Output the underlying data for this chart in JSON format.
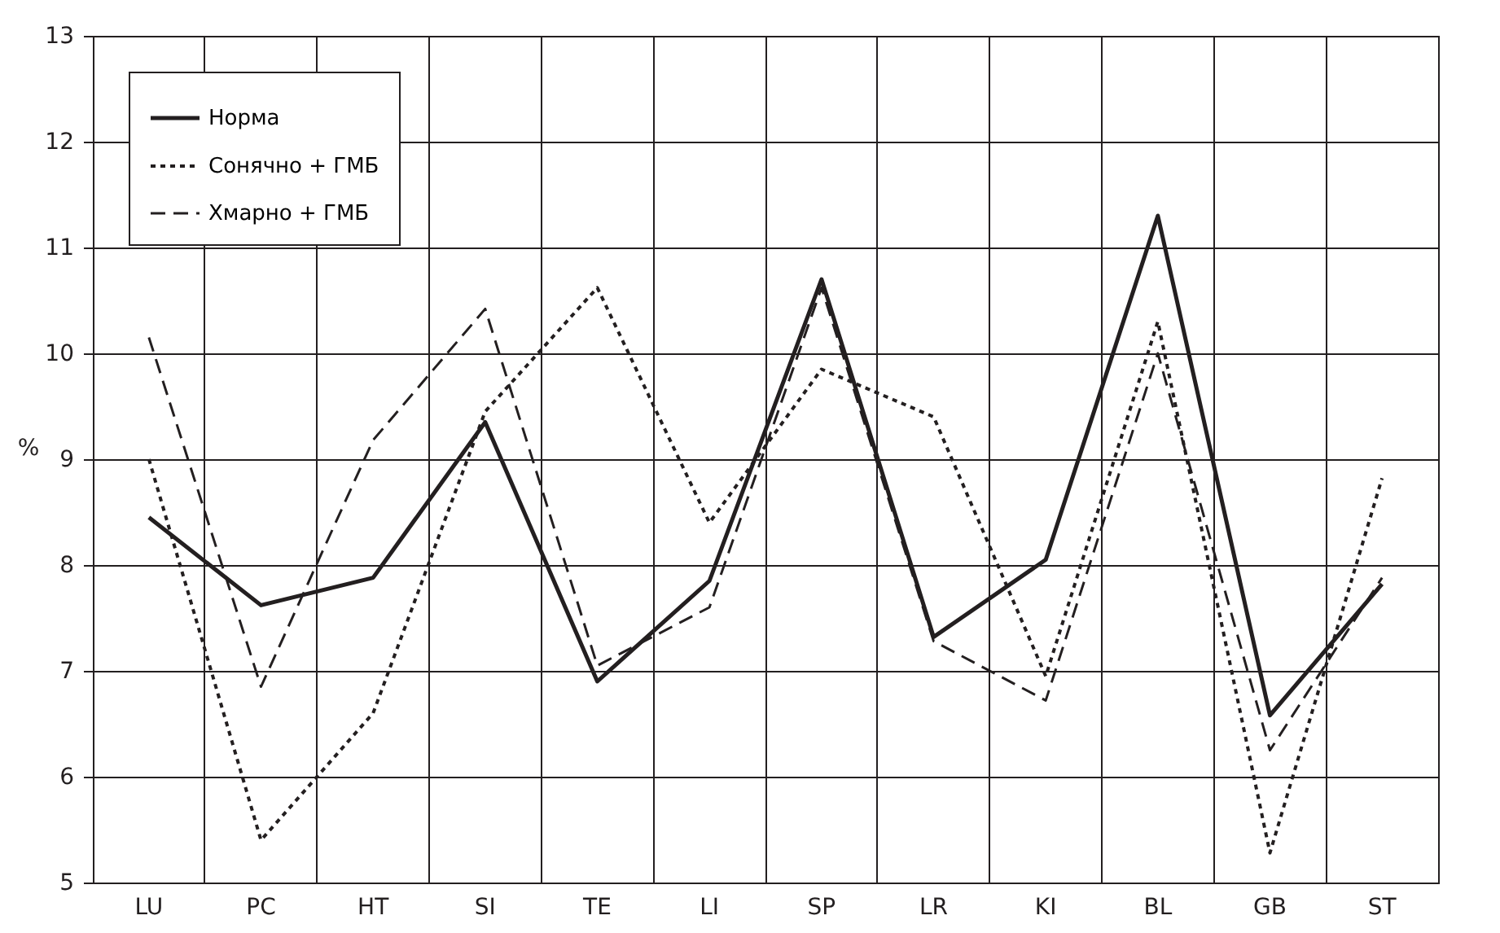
{
  "chart_data": {
    "type": "line",
    "ylabel": "%",
    "categories": [
      "LU",
      "PC",
      "HT",
      "SI",
      "TE",
      "LI",
      "SP",
      "LR",
      "KI",
      "BL",
      "GB",
      "ST"
    ],
    "series": [
      {
        "name": "Норма",
        "color": "#231f20",
        "line_style": "solid",
        "values": [
          8.45,
          7.62,
          7.88,
          9.35,
          6.9,
          7.85,
          10.7,
          7.32,
          8.05,
          11.3,
          6.58,
          7.82
        ]
      },
      {
        "name": "Сонячно + ГМБ",
        "color": "#231f20",
        "line_style": "dotted",
        "values": [
          9.0,
          5.4,
          6.6,
          9.45,
          10.62,
          8.4,
          9.85,
          9.4,
          6.95,
          10.3,
          5.28,
          8.82
        ]
      },
      {
        "name": "Хмарно + ГМБ",
        "color": "#231f20",
        "line_style": "dashed",
        "values": [
          10.15,
          6.85,
          9.18,
          10.42,
          7.05,
          7.6,
          10.62,
          7.28,
          6.72,
          10.0,
          6.25,
          7.88
        ]
      }
    ],
    "ylim": [
      5,
      13
    ],
    "yticks": [
      5,
      6,
      7,
      8,
      9,
      10,
      11,
      12,
      13
    ],
    "grid": true,
    "legend": "top left",
    "marker": "none"
  }
}
